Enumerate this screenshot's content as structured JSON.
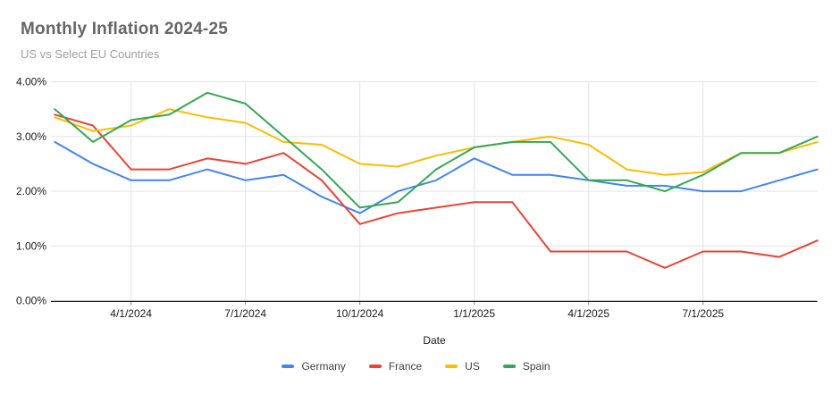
{
  "header": {
    "title": "Monthly Inflation 2024-25",
    "subtitle": "US vs Select EU Countries"
  },
  "chart_data": {
    "type": "line",
    "title": "Monthly Inflation 2024-25",
    "subtitle": "US vs Select EU Countries",
    "xlabel": "Date",
    "ylabel": "",
    "x": [
      "2/1/2024",
      "3/1/2024",
      "4/1/2024",
      "5/1/2024",
      "6/1/2024",
      "7/1/2024",
      "8/1/2024",
      "9/1/2024",
      "10/1/2024",
      "11/1/2024",
      "12/1/2024",
      "1/1/2025",
      "2/1/2025",
      "3/1/2025",
      "4/1/2025",
      "5/1/2025",
      "6/1/2025",
      "7/1/2025",
      "8/1/2025",
      "9/1/2025",
      "10/1/2025"
    ],
    "series": [
      {
        "name": "Germany",
        "color": "#4285F4",
        "values": [
          2.9,
          2.5,
          2.2,
          2.2,
          2.4,
          2.2,
          2.3,
          1.9,
          1.6,
          2.0,
          2.2,
          2.6,
          2.3,
          2.3,
          2.2,
          2.1,
          2.1,
          2.0,
          2.0,
          2.2,
          2.4
        ]
      },
      {
        "name": "France",
        "color": "#EA4335",
        "values": [
          3.4,
          3.2,
          2.4,
          2.4,
          2.6,
          2.5,
          2.7,
          2.2,
          1.4,
          1.6,
          1.7,
          1.8,
          1.8,
          0.9,
          0.9,
          0.9,
          0.6,
          0.9,
          0.9,
          0.8,
          1.1
        ]
      },
      {
        "name": "US",
        "color": "#FBBC04",
        "values": [
          3.35,
          3.1,
          3.2,
          3.5,
          3.35,
          3.25,
          2.9,
          2.85,
          2.5,
          2.45,
          2.65,
          2.8,
          2.9,
          3.0,
          2.85,
          2.4,
          2.3,
          2.35,
          2.7,
          2.7,
          2.9
        ]
      },
      {
        "name": "Spain",
        "color": "#34A853",
        "values": [
          3.5,
          2.9,
          3.3,
          3.4,
          3.8,
          3.6,
          3.0,
          2.4,
          1.7,
          1.8,
          2.4,
          2.8,
          2.9,
          2.9,
          2.2,
          2.2,
          2.0,
          2.3,
          2.7,
          2.7,
          3.0
        ]
      }
    ],
    "x_tick_indices": [
      2,
      5,
      8,
      11,
      14,
      17
    ],
    "x_tick_labels": [
      "4/1/2024",
      "7/1/2024",
      "10/1/2024",
      "1/1/2025",
      "4/1/2025",
      "7/1/2025"
    ],
    "y_tick_labels": [
      "0.00%",
      "1.00%",
      "2.00%",
      "3.00%",
      "4.00%"
    ],
    "ylim": [
      0,
      4
    ],
    "grid": true,
    "legend_position": "bottom"
  },
  "colors": {
    "background": "#ffffff",
    "gridline": "#e3e3e3",
    "axis_line": "#000000",
    "tick": "#888888",
    "tick_label": "#1a1a1a",
    "title": "#666666",
    "subtitle": "#9e9e9e",
    "legend_label": "#3c4043"
  }
}
